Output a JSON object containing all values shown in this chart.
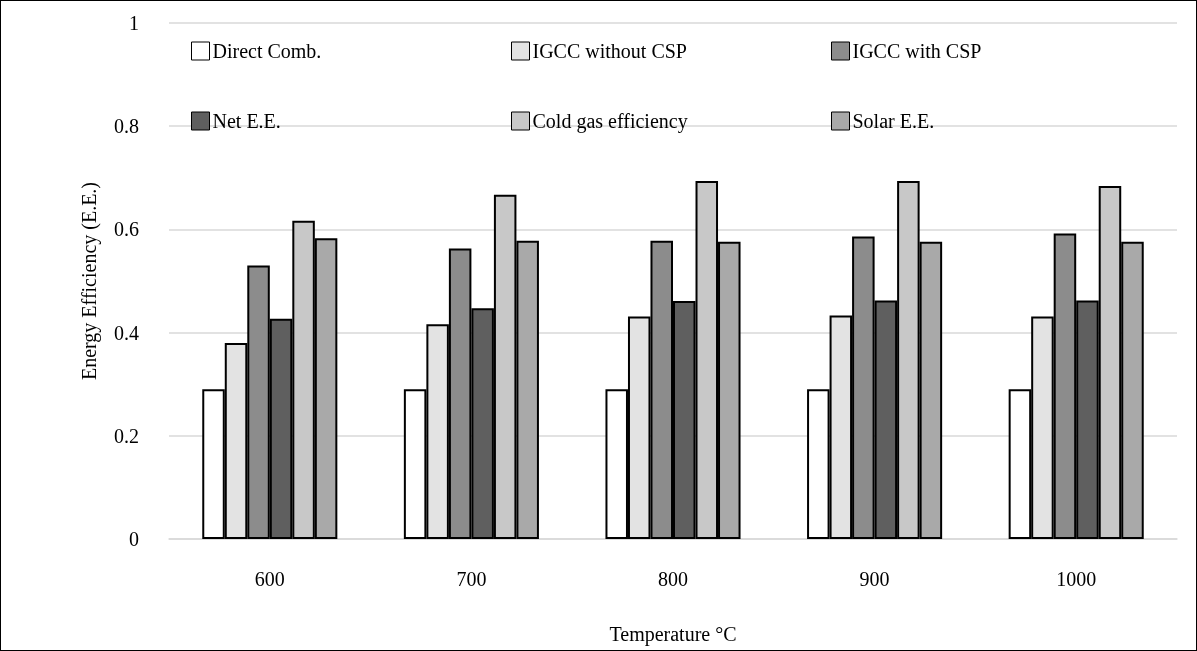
{
  "chart_data": {
    "type": "bar",
    "xlabel": "Temperature °C",
    "ylabel": "Energy Efficiency (E.E.)",
    "categories": [
      "600",
      "700",
      "800",
      "900",
      "1000"
    ],
    "series": [
      {
        "name": "Direct Comb.",
        "color": "#ffffff",
        "values": [
          0.29,
          0.29,
          0.29,
          0.29,
          0.29
        ]
      },
      {
        "name": "IGCC without CSP",
        "color": "#e3e3e3",
        "values": [
          0.38,
          0.416,
          0.431,
          0.433,
          0.431
        ]
      },
      {
        "name": "IGCC with CSP",
        "color": "#8c8c8c",
        "values": [
          0.53,
          0.563,
          0.578,
          0.586,
          0.592
        ]
      },
      {
        "name": "Net E.E.",
        "color": "#5f5f5f",
        "values": [
          0.427,
          0.447,
          0.461,
          0.462,
          0.462
        ]
      },
      {
        "name": "Cold gas efficiency",
        "color": "#c8c8c8",
        "values": [
          0.617,
          0.667,
          0.694,
          0.694,
          0.684
        ]
      },
      {
        "name": "Solar E.E.",
        "color": "#a9a9a9",
        "values": [
          0.583,
          0.578,
          0.576,
          0.576,
          0.576
        ]
      }
    ],
    "ylim": [
      0,
      1
    ],
    "yticks": [
      0,
      0.2,
      0.4,
      0.6,
      0.8,
      1
    ],
    "grid": "y",
    "legend": "top"
  }
}
